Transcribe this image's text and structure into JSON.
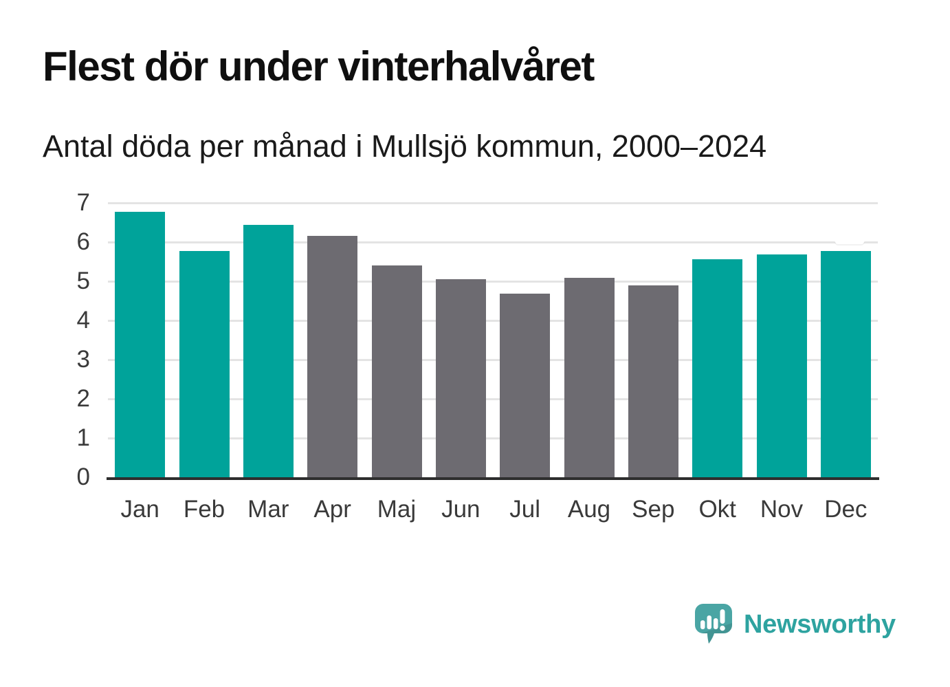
{
  "chart_data": {
    "type": "bar",
    "title": "Flest dör under vinterhalvåret",
    "subtitle": "Antal döda per månad i Mullsjö kommun, 2000–2024",
    "categories": [
      "Jan",
      "Feb",
      "Mar",
      "Apr",
      "Maj",
      "Jun",
      "Jul",
      "Aug",
      "Sep",
      "Okt",
      "Nov",
      "Dec"
    ],
    "values": [
      6.78,
      5.77,
      6.43,
      6.15,
      5.41,
      5.06,
      4.69,
      5.09,
      4.9,
      5.56,
      5.68,
      5.78
    ],
    "bar_colors": [
      "winter",
      "winter",
      "winter",
      "summer",
      "summer",
      "summer",
      "summer",
      "summer",
      "summer",
      "winter",
      "winter",
      "winter"
    ],
    "palette": {
      "winter": "#00a39a",
      "summer": "#6d6b71"
    },
    "xlabel": "",
    "ylabel": "",
    "ylim": [
      0,
      7
    ],
    "yticks": [
      0,
      1,
      2,
      3,
      4,
      5,
      6,
      7
    ],
    "grid": true,
    "legend": "none"
  },
  "footer": {
    "logo_text": "Newsworthy"
  },
  "style_colors": {
    "axis": "#2e2e2e",
    "gridline": "#e4e4e4",
    "tick_label": "#3a3a3a",
    "title": "#0f0f0f",
    "logo_text_teal": "#2ea3a0",
    "logo_bubble_teal": "#4aa5a4"
  }
}
